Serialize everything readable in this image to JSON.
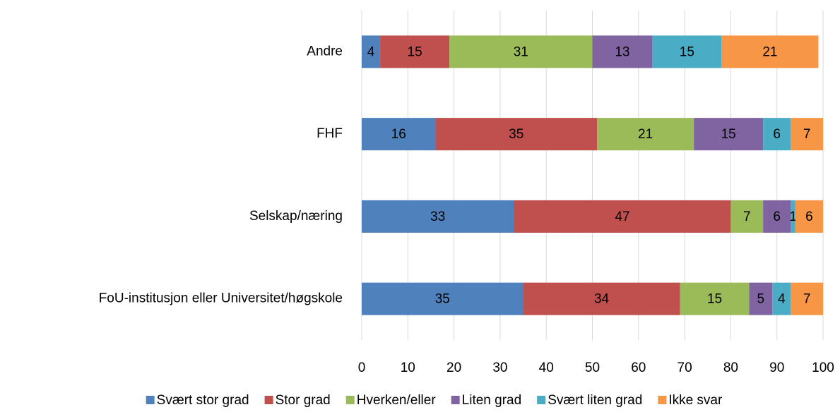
{
  "chart_data": {
    "type": "stacked-barh",
    "categories": [
      "Andre",
      "FHF",
      "Selskap/næring",
      "FoU-institusjon eller Universitet/høgskole"
    ],
    "series": [
      {
        "name": "Svært stor grad",
        "color": "#4f81bd",
        "values": [
          4,
          16,
          33,
          35
        ]
      },
      {
        "name": "Stor grad",
        "color": "#c0504d",
        "values": [
          15,
          35,
          47,
          34
        ]
      },
      {
        "name": "Hverken/eller",
        "color": "#9bbb59",
        "values": [
          31,
          21,
          7,
          15
        ]
      },
      {
        "name": "Liten grad",
        "color": "#8064a2",
        "values": [
          13,
          15,
          6,
          5
        ]
      },
      {
        "name": "Svært liten grad",
        "color": "#4bacc6",
        "values": [
          15,
          6,
          1,
          4
        ]
      },
      {
        "name": "Ikke svar",
        "color": "#f79646",
        "values": [
          21,
          7,
          6,
          7
        ]
      }
    ],
    "xlim": [
      0,
      100
    ],
    "xticks": [
      0,
      10,
      20,
      30,
      40,
      50,
      60,
      70,
      80,
      90,
      100
    ],
    "grid": true,
    "legend": "bottom"
  }
}
